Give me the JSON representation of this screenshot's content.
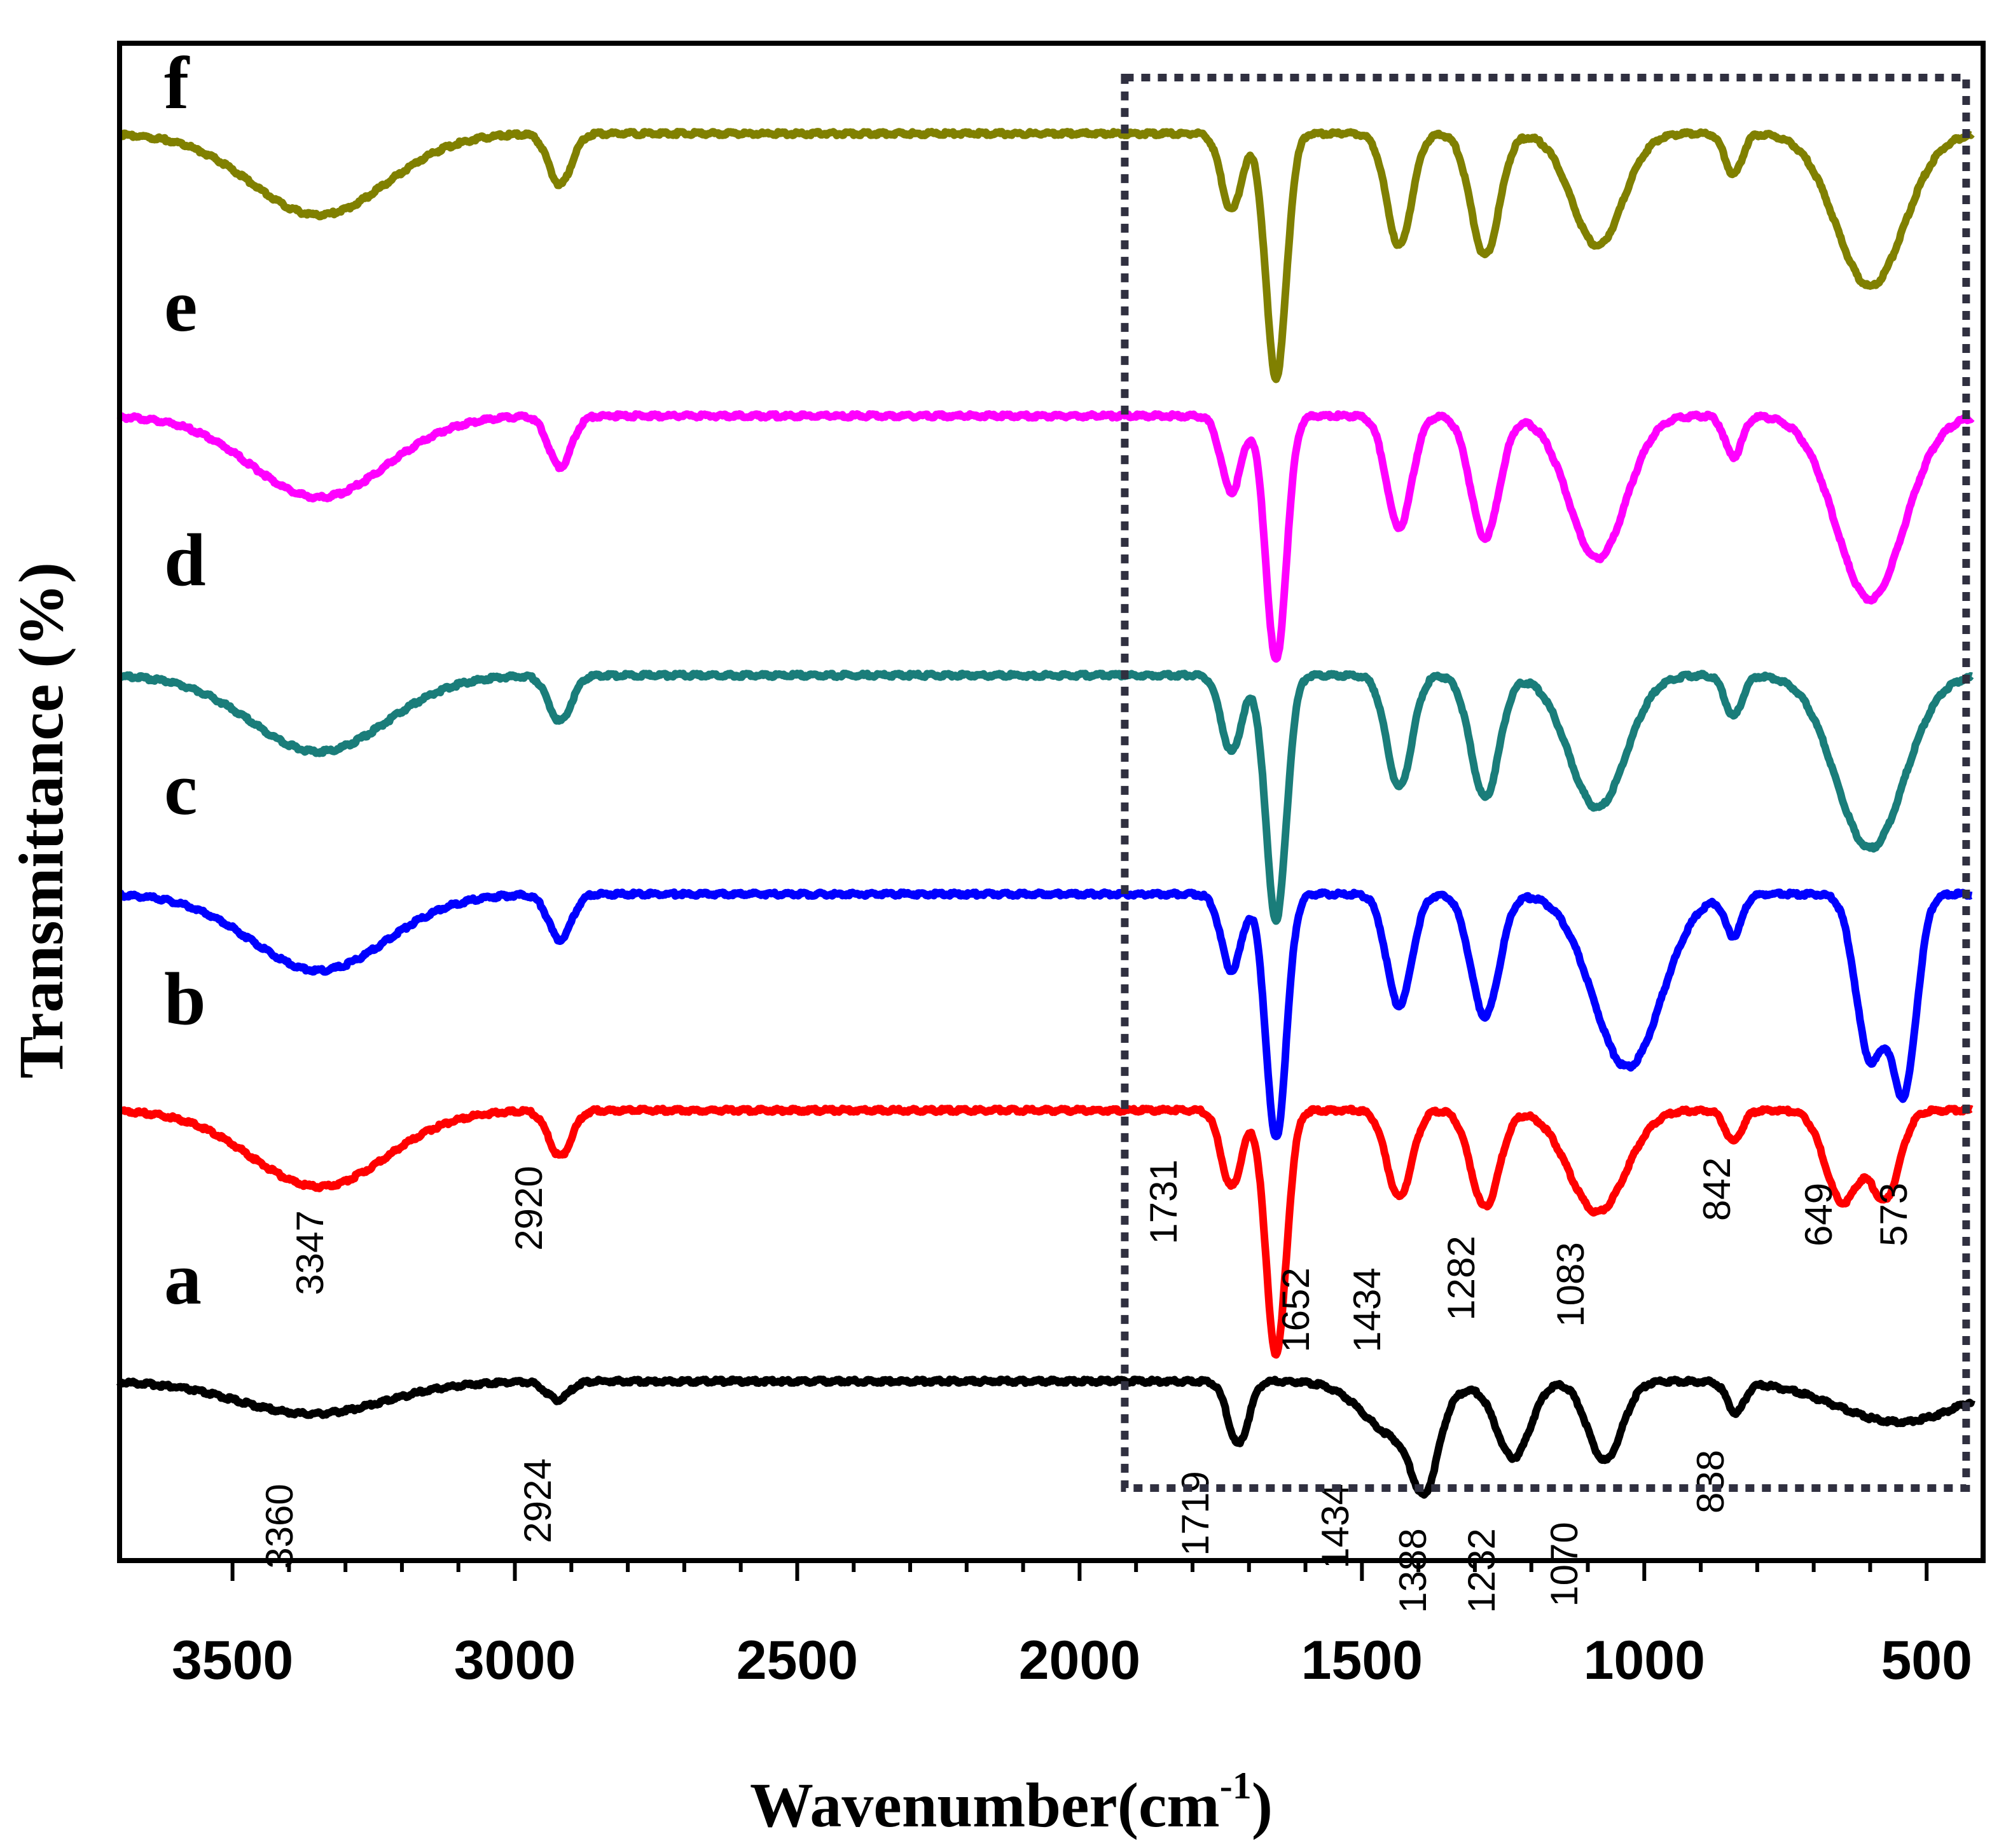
{
  "chart_data": {
    "type": "line",
    "title": "",
    "xlabel": "Wavenumber(cm",
    "xlabel_sup": "-1",
    "xlabel_end": ")",
    "ylabel": "Transmittance (%)",
    "x_reversed": true,
    "xlim": [
      3700,
      400
    ],
    "xticks": [
      3500,
      3000,
      2500,
      2000,
      1500,
      1000,
      500
    ],
    "xtick_labels": [
      "3500",
      "3000",
      "2500",
      "2000",
      "1500",
      "1000",
      "500"
    ],
    "highlight_box": {
      "x_from": 1920,
      "x_to": 430,
      "style": "dotted"
    },
    "series": [
      {
        "name": "a",
        "color": "#000000",
        "peaks": [
          {
            "x": 3360,
            "depth": 0.32,
            "width": 130,
            "label": "3360"
          },
          {
            "x": 2924,
            "depth": 0.18,
            "width": 20,
            "label": "2924"
          },
          {
            "x": 1719,
            "depth": 0.62,
            "width": 18,
            "label": "1719"
          },
          {
            "x": 1434,
            "depth": 0.55,
            "width": 60,
            "label": "1434"
          },
          {
            "x": 1388,
            "depth": 0.7,
            "width": 22,
            "label": "1388"
          },
          {
            "x": 1232,
            "depth": 0.75,
            "width": 30,
            "label": "1232"
          },
          {
            "x": 1070,
            "depth": 0.78,
            "width": 30,
            "label": "1070"
          },
          {
            "x": 838,
            "depth": 0.3,
            "width": 15,
            "label": "838"
          },
          {
            "x": 550,
            "depth": 0.4,
            "width": 110,
            "label": ""
          }
        ]
      },
      {
        "name": "b",
        "color": "#ff0000",
        "peaks": [
          {
            "x": 3347,
            "depth": 0.75,
            "width": 120,
            "label": "3347"
          },
          {
            "x": 2920,
            "depth": 0.45,
            "width": 20,
            "label": "2920"
          },
          {
            "x": 1731,
            "depth": 0.75,
            "width": 18,
            "label": "1731"
          },
          {
            "x": 1652,
            "depth": 2.4,
            "width": 18,
            "label": "1652"
          },
          {
            "x": 1434,
            "depth": 0.85,
            "width": 22,
            "label": "1434"
          },
          {
            "x": 1282,
            "depth": 0.95,
            "width": 25,
            "label": "1282"
          },
          {
            "x": 1083,
            "depth": 1.0,
            "width": 50,
            "label": "1083"
          },
          {
            "x": 842,
            "depth": 0.3,
            "width": 15,
            "label": "842"
          },
          {
            "x": 649,
            "depth": 0.9,
            "width": 30,
            "label": "649"
          },
          {
            "x": 573,
            "depth": 0.85,
            "width": 25,
            "label": "573"
          }
        ]
      },
      {
        "name": "c",
        "color": "#0000ff",
        "peaks": [
          {
            "x": 3347,
            "depth": 0.75,
            "width": 120,
            "label": ""
          },
          {
            "x": 2920,
            "depth": 0.45,
            "width": 20,
            "label": ""
          },
          {
            "x": 1731,
            "depth": 0.75,
            "width": 18,
            "label": ""
          },
          {
            "x": 1652,
            "depth": 2.4,
            "width": 18,
            "label": ""
          },
          {
            "x": 1434,
            "depth": 1.1,
            "width": 22,
            "label": ""
          },
          {
            "x": 1282,
            "depth": 1.2,
            "width": 25,
            "label": ""
          },
          {
            "x": 1030,
            "depth": 1.7,
            "width": 60,
            "label": ""
          },
          {
            "x": 842,
            "depth": 0.4,
            "width": 15,
            "label": ""
          },
          {
            "x": 600,
            "depth": 1.6,
            "width": 25,
            "label": ""
          },
          {
            "x": 540,
            "depth": 1.9,
            "width": 22,
            "label": ""
          }
        ]
      },
      {
        "name": "d",
        "color": "#1a7d7a",
        "peaks": [
          {
            "x": 3347,
            "depth": 0.75,
            "width": 120,
            "label": ""
          },
          {
            "x": 2920,
            "depth": 0.45,
            "width": 20,
            "label": ""
          },
          {
            "x": 1731,
            "depth": 0.75,
            "width": 18,
            "label": ""
          },
          {
            "x": 1652,
            "depth": 2.4,
            "width": 18,
            "label": ""
          },
          {
            "x": 1434,
            "depth": 1.1,
            "width": 22,
            "label": ""
          },
          {
            "x": 1282,
            "depth": 1.2,
            "width": 25,
            "label": ""
          },
          {
            "x": 1083,
            "depth": 1.3,
            "width": 50,
            "label": ""
          },
          {
            "x": 842,
            "depth": 0.4,
            "width": 15,
            "label": ""
          },
          {
            "x": 600,
            "depth": 1.7,
            "width": 60,
            "label": ""
          }
        ]
      },
      {
        "name": "e",
        "color": "#ff00ff",
        "peaks": [
          {
            "x": 3347,
            "depth": 0.8,
            "width": 120,
            "label": ""
          },
          {
            "x": 2920,
            "depth": 0.5,
            "width": 20,
            "label": ""
          },
          {
            "x": 1731,
            "depth": 0.75,
            "width": 18,
            "label": ""
          },
          {
            "x": 1652,
            "depth": 2.4,
            "width": 18,
            "label": ""
          },
          {
            "x": 1434,
            "depth": 1.1,
            "width": 22,
            "label": ""
          },
          {
            "x": 1282,
            "depth": 1.2,
            "width": 25,
            "label": ""
          },
          {
            "x": 1083,
            "depth": 1.4,
            "width": 50,
            "label": ""
          },
          {
            "x": 842,
            "depth": 0.4,
            "width": 15,
            "label": ""
          },
          {
            "x": 600,
            "depth": 1.8,
            "width": 60,
            "label": ""
          }
        ]
      },
      {
        "name": "f",
        "color": "#808000",
        "peaks": [
          {
            "x": 3347,
            "depth": 0.8,
            "width": 120,
            "label": ""
          },
          {
            "x": 2920,
            "depth": 0.5,
            "width": 20,
            "label": ""
          },
          {
            "x": 1731,
            "depth": 0.75,
            "width": 18,
            "label": ""
          },
          {
            "x": 1652,
            "depth": 2.4,
            "width": 18,
            "label": ""
          },
          {
            "x": 1434,
            "depth": 1.1,
            "width": 22,
            "label": ""
          },
          {
            "x": 1282,
            "depth": 1.2,
            "width": 25,
            "label": ""
          },
          {
            "x": 1083,
            "depth": 1.1,
            "width": 45,
            "label": ""
          },
          {
            "x": 842,
            "depth": 0.4,
            "width": 15,
            "label": ""
          },
          {
            "x": 600,
            "depth": 1.5,
            "width": 60,
            "label": ""
          }
        ]
      }
    ]
  }
}
